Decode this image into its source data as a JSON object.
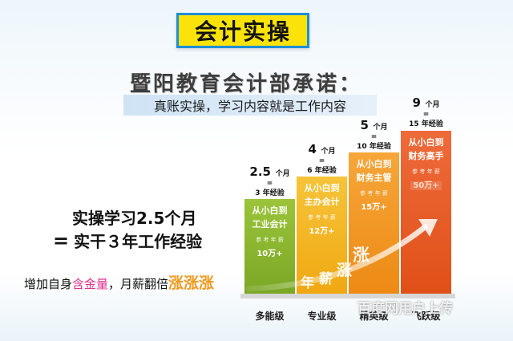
{
  "title": "会计实操",
  "subtitle": "暨阳教育会计部承诺：",
  "tagline": "真账实操，学习内容就是工作内容",
  "promo": {
    "line1": "实操学习2.5个月",
    "line2_eq": "=",
    "line2": "实干３年工作经验",
    "line3_a": "增加自身",
    "line3_hl": "含金量",
    "line3_b": "，月薪翻倍",
    "line3_big": "涨涨涨"
  },
  "bars": [
    {
      "exp_num": "2.5",
      "exp_unit": "个月",
      "exp_eq": "=",
      "exp_years": "3 年经验",
      "desc1": "从小白到",
      "desc2": "工业会计",
      "ref": "参 考 年 薪",
      "salary": "10万+",
      "level": "多能级",
      "color": "#8db52f"
    },
    {
      "exp_num": "4",
      "exp_unit": "个月",
      "exp_eq": "=",
      "exp_years": "6 年经验",
      "desc1": "从小白到",
      "desc2": "主办会计",
      "ref": "参 考 年 薪",
      "salary": "12万+",
      "level": "专业级",
      "color": "#f3b226"
    },
    {
      "exp_num": "5",
      "exp_unit": "个月",
      "exp_eq": "=",
      "exp_years": "10 年经验",
      "desc1": "从小白到",
      "desc2": "财务主管",
      "ref": "参 考 年 薪",
      "salary": "15万+",
      "level": "精英级",
      "color": "#f09a24"
    },
    {
      "exp_num": "9",
      "exp_unit": "个月",
      "exp_eq": "=",
      "exp_years": "15 年经验",
      "desc1": "从小白到",
      "desc2": "财务高手",
      "ref": "参 考 年 薪",
      "salary": "50万+",
      "level": "飞跃级",
      "color": "#e75d28"
    }
  ],
  "arrow_text": [
    "年",
    "薪",
    "涨",
    "涨"
  ],
  "watermark": "百度网用户上传"
}
